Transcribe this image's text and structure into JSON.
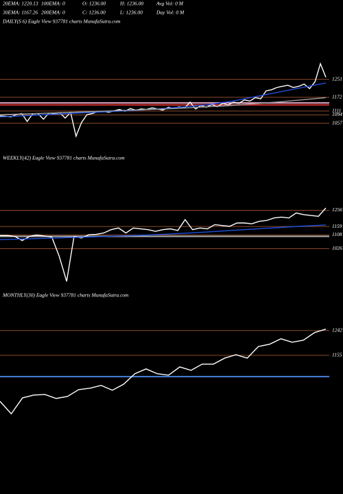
{
  "header": {
    "rows": [
      [
        "20EMA: 1220.13",
        "100EMA: 0",
        "O: 1236.00",
        "H: 1236.00",
        "Avg Vol: 0  M"
      ],
      [
        "30EMA: 1167.26",
        "200EMA: 0",
        "C: 1236.00",
        "L: 1236.00",
        "Day Vol: 0  M"
      ]
    ]
  },
  "chart_data": [
    {
      "type": "line",
      "title": "DAILY(S          6) Eagle  View  937781 charts MunafaSutra.com",
      "ylim": [
        950,
        1480
      ],
      "yticks": [
        1251,
        1172,
        1111,
        1094,
        1057
      ],
      "tick_color": "#8b4a2b",
      "lines": [
        {
          "value": 1147,
          "color": "#e0a0c0"
        },
        {
          "value": 1138,
          "color": "#d03030"
        }
      ],
      "series": [
        {
          "color": "#ffffff",
          "values": [
            1090,
            1088,
            1085,
            1095,
            1100,
            1065,
            1098,
            1100,
            1075,
            1102,
            1100,
            1104,
            1080,
            1105,
            1000,
            1060,
            1095,
            1100,
            1108,
            1110,
            1105,
            1112,
            1118,
            1110,
            1122,
            1115,
            1120,
            1118,
            1125,
            1120,
            1115,
            1128,
            1122,
            1130,
            1125,
            1150,
            1120,
            1135,
            1128,
            1140,
            1130,
            1145,
            1138,
            1150,
            1145,
            1160,
            1155,
            1170,
            1165,
            1200,
            1205,
            1215,
            1220,
            1225,
            1215,
            1220,
            1230,
            1210,
            1240,
            1320,
            1260
          ]
        },
        {
          "color": "#2050e0",
          "values": [
            1085,
            1090,
            1095,
            1100,
            1105,
            1110,
            1115,
            1122,
            1130,
            1140,
            1155,
            1175,
            1195,
            1215,
            1235
          ]
        },
        {
          "color": "#a0a0a0",
          "values": [
            1095,
            1098,
            1102,
            1106,
            1110,
            1114,
            1118,
            1122,
            1128,
            1134,
            1142,
            1150,
            1160,
            1170
          ]
        }
      ]
    },
    {
      "type": "line",
      "title": "WEEKLY(42) Eagle  View  937781 charts MunafaSutra.com",
      "ylim": [
        810,
        1550
      ],
      "yticks": [
        1256,
        1159,
        1108,
        1026
      ],
      "tick_color": "#8b4a2b",
      "lines": [
        {
          "value": 1100,
          "color": "#b0b0b0"
        }
      ],
      "series": [
        {
          "color": "#ffffff",
          "values": [
            1105,
            1105,
            1100,
            1075,
            1100,
            1108,
            1102,
            1095,
            980,
            830,
            1100,
            1090,
            1110,
            1112,
            1120,
            1140,
            1150,
            1120,
            1150,
            1145,
            1140,
            1130,
            1140,
            1145,
            1135,
            1200,
            1140,
            1150,
            1145,
            1170,
            1165,
            1160,
            1180,
            1180,
            1175,
            1190,
            1195,
            1210,
            1215,
            1210,
            1240,
            1230,
            1225,
            1220,
            1270
          ]
        },
        {
          "color": "#2050e0",
          "values": [
            1080,
            1085,
            1090,
            1095,
            1100,
            1105,
            1112,
            1120,
            1130,
            1140,
            1150,
            1160,
            1168
          ]
        }
      ]
    },
    {
      "type": "line",
      "title": "MONTHLY(30) Eagle  View  937781 charts MunafaSutra.com",
      "ylim": [
        715,
        1355
      ],
      "yticks": [
        1242,
        1155
      ],
      "tick_color": "#8b4a2b",
      "lines": [
        {
          "value": 1080,
          "color": "#4a80e0"
        }
      ],
      "series": [
        {
          "color": "#ffffff",
          "values": [
            993,
            949,
            1005,
            1015,
            1017,
            1003,
            1010,
            1034,
            1039,
            1049,
            1032,
            1053,
            1090,
            1107,
            1090,
            1085,
            1114,
            1102,
            1124,
            1124,
            1145,
            1157,
            1145,
            1186,
            1194,
            1213,
            1201,
            1208,
            1235,
            1247
          ]
        }
      ]
    }
  ]
}
